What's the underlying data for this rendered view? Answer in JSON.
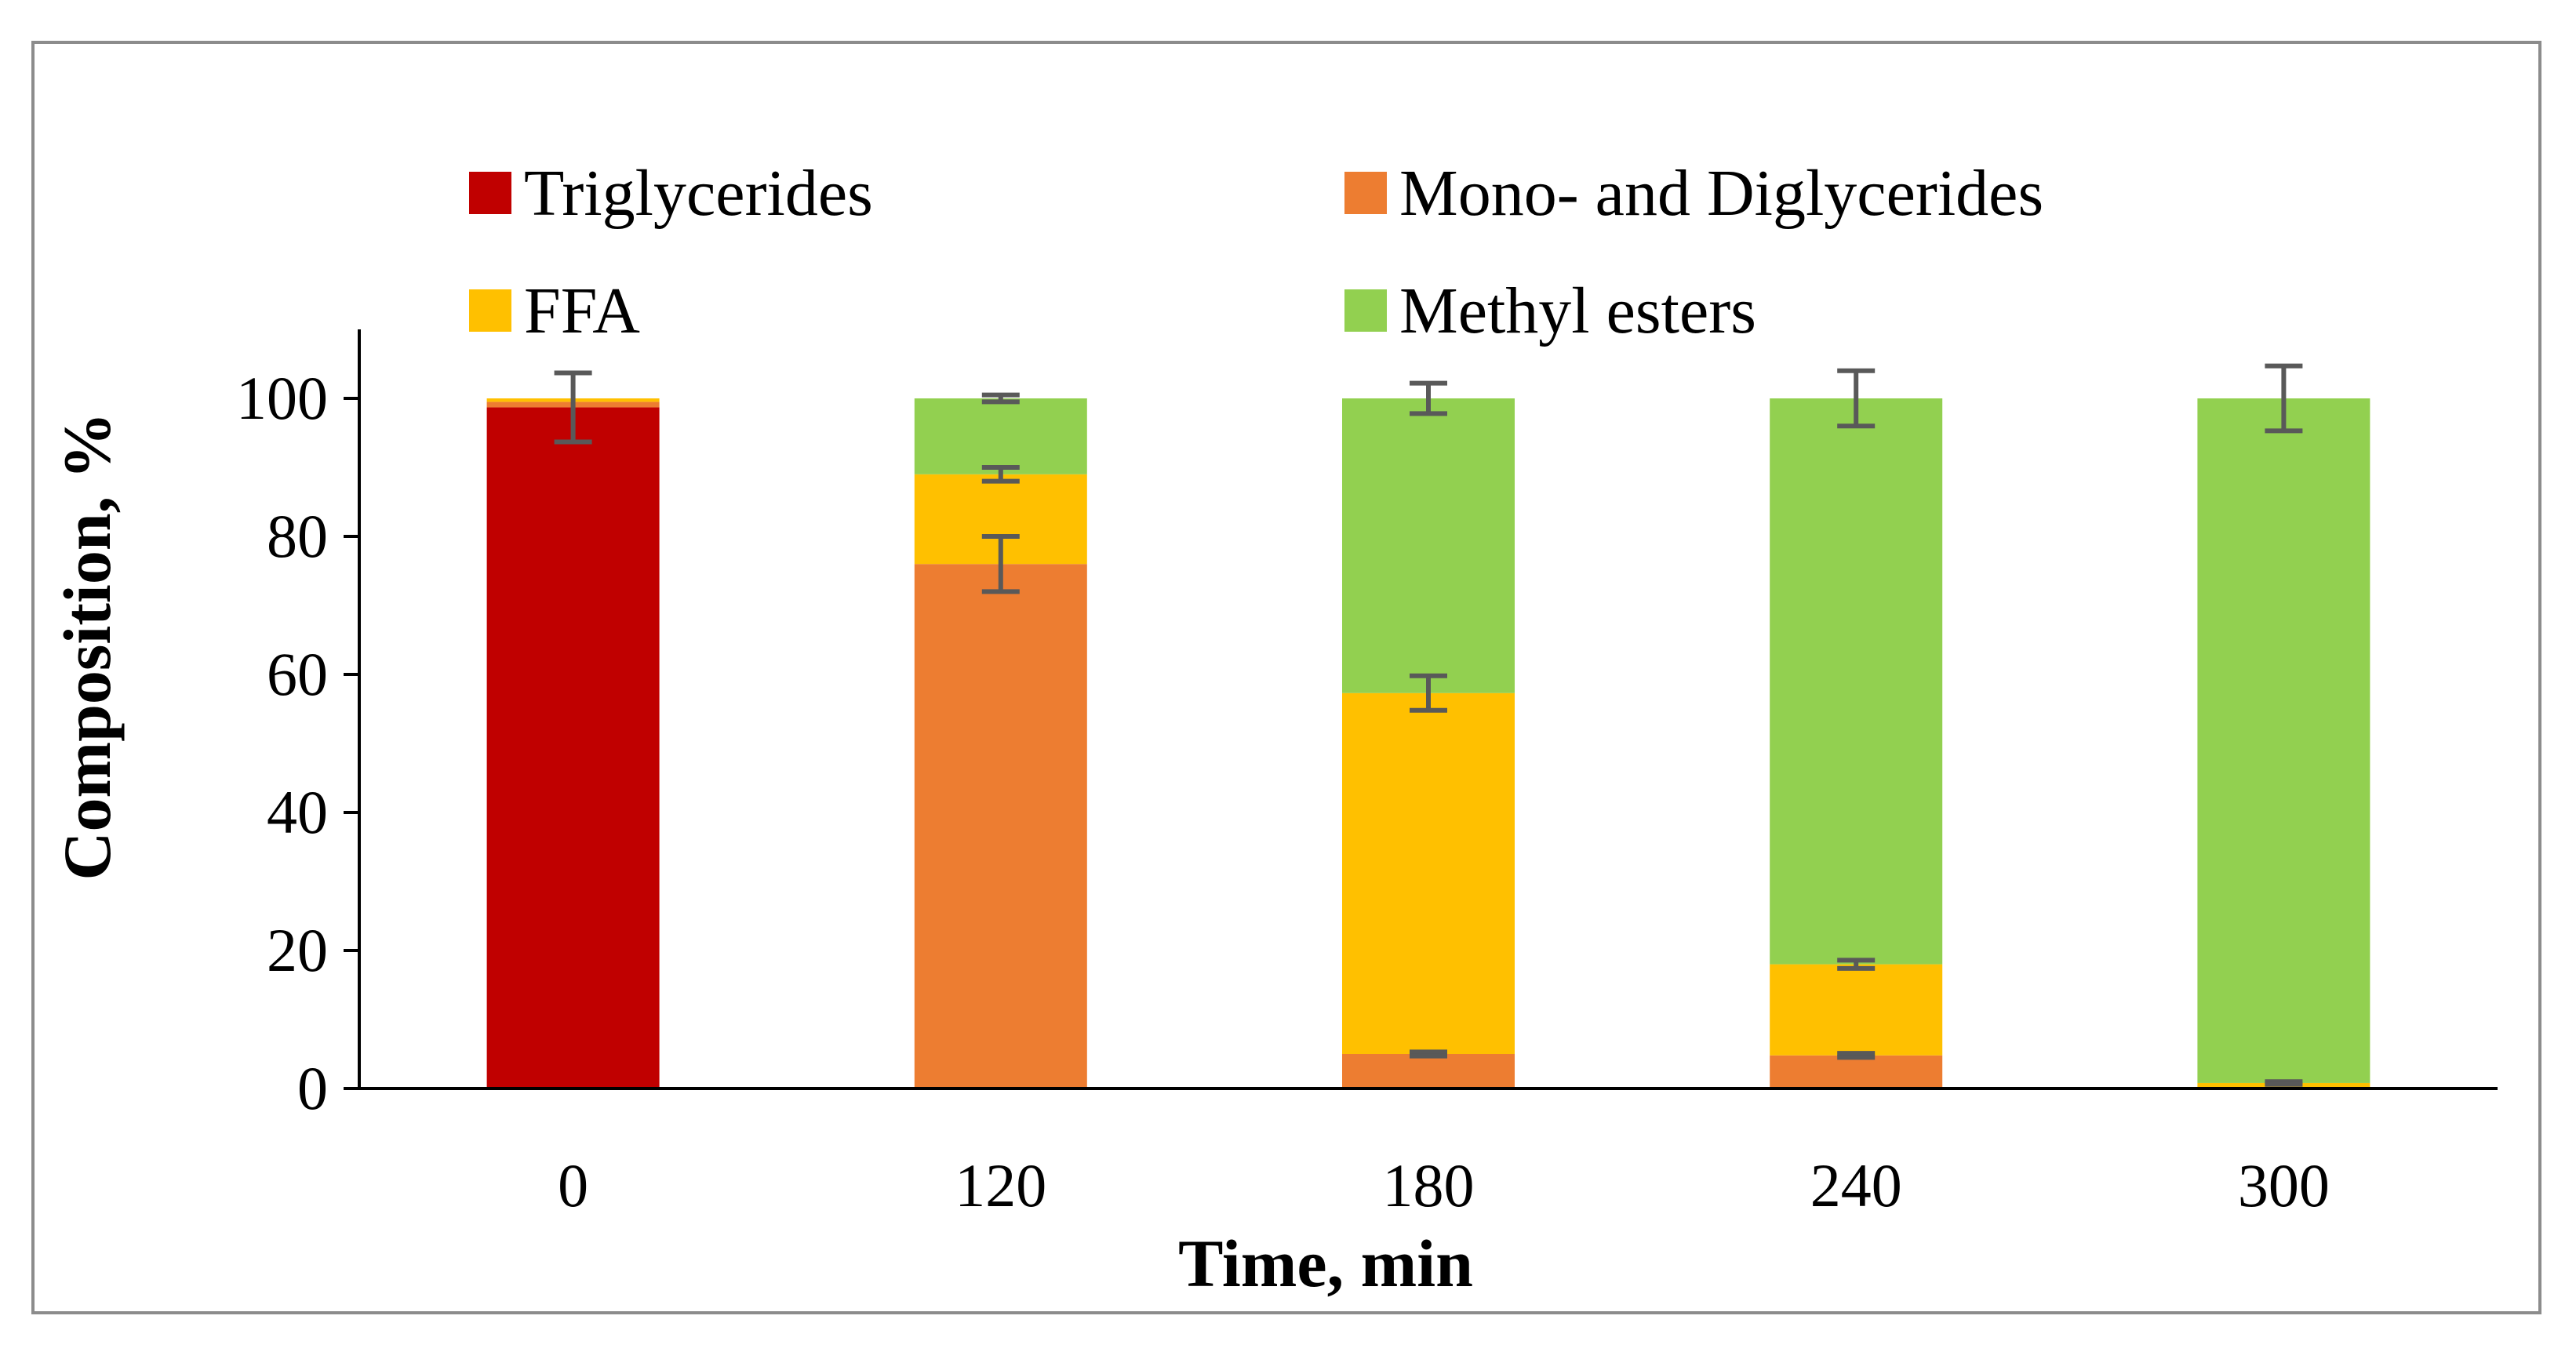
{
  "chart_data": {
    "type": "bar",
    "stacked": true,
    "title": "",
    "xlabel": "Time, min",
    "ylabel": "Composition, %",
    "categories": [
      "0",
      "120",
      "180",
      "240",
      "300"
    ],
    "ylim": [
      0,
      110
    ],
    "yticks": [
      0,
      20,
      40,
      60,
      80,
      100
    ],
    "grid": false,
    "legend_position": "top",
    "series": [
      {
        "name": "Triglycerides",
        "color": "#C00000",
        "values": [
          98.7,
          0,
          0,
          0,
          0
        ]
      },
      {
        "name": "Mono- and Diglycerides",
        "color": "#ED7D31",
        "values": [
          0.8,
          76,
          5,
          4.8,
          0
        ]
      },
      {
        "name": "FFA",
        "color": "#FFC000",
        "values": [
          0.5,
          13,
          52.3,
          13.2,
          0.8
        ]
      },
      {
        "name": "Methyl esters",
        "color": "#92D050",
        "values": [
          0,
          11,
          42.7,
          82,
          99.2
        ]
      }
    ],
    "error_bars": [
      {
        "category": "0",
        "value": 98.7,
        "error": 5
      },
      {
        "category": "120",
        "value": 76,
        "error": 4
      },
      {
        "category": "120",
        "value": 89,
        "error": 1
      },
      {
        "category": "120",
        "value": 100,
        "error": 0.5
      },
      {
        "category": "180",
        "value": 5,
        "error": 0.3
      },
      {
        "category": "180",
        "value": 57.3,
        "error": 2.5
      },
      {
        "category": "180",
        "value": 100,
        "error": 2.2
      },
      {
        "category": "240",
        "value": 4.8,
        "error": 0.3
      },
      {
        "category": "240",
        "value": 18,
        "error": 0.6
      },
      {
        "category": "240",
        "value": 100,
        "error": 4
      },
      {
        "category": "300",
        "value": 0.8,
        "error": 0.2
      },
      {
        "category": "300",
        "value": 100,
        "error": 4.7
      }
    ]
  }
}
